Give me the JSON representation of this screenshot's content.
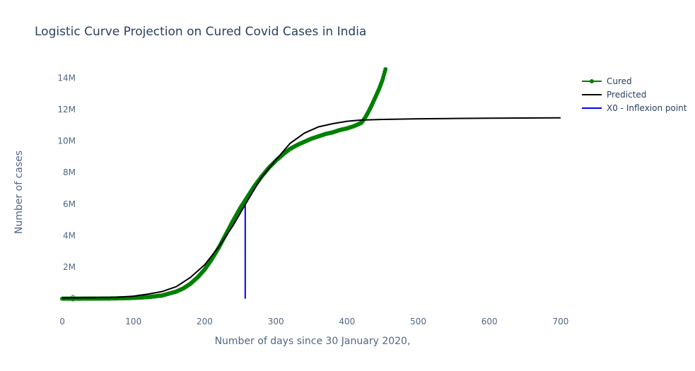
{
  "chart_data": {
    "type": "line",
    "title": "Logistic Curve Projection on Cured Covid Cases in India",
    "xlabel": "Number of days since 30 January 2020,",
    "ylabel": "Number of cases",
    "xlim": [
      -8,
      710
    ],
    "ylim": [
      -1000000,
      15000000
    ],
    "x_ticks": [
      0,
      100,
      200,
      300,
      400,
      500,
      600,
      700
    ],
    "x_tick_labels": [
      "0",
      "100",
      "200",
      "300",
      "400",
      "500",
      "600",
      "700"
    ],
    "y_ticks": [
      0,
      2000000,
      4000000,
      6000000,
      8000000,
      10000000,
      12000000,
      14000000
    ],
    "y_tick_labels": [
      "0",
      "2M",
      "4M",
      "6M",
      "8M",
      "10M",
      "12M",
      "14M"
    ],
    "grid": false,
    "legend_position": "top-right",
    "series": [
      {
        "name": "Cured",
        "style": "lines+markers",
        "color": "#008000",
        "x": [
          0,
          25,
          50,
          75,
          100,
          120,
          140,
          160,
          170,
          180,
          190,
          200,
          210,
          220,
          230,
          240,
          250,
          260,
          270,
          280,
          290,
          300,
          310,
          320,
          330,
          340,
          350,
          360,
          370,
          380,
          390,
          400,
          410,
          420,
          425,
          430,
          435,
          440,
          445,
          450,
          454
        ],
        "y": [
          0,
          5000,
          10000,
          20000,
          50000,
          100000,
          200000,
          450000,
          650000,
          950000,
          1350000,
          1850000,
          2500000,
          3250000,
          4100000,
          4950000,
          5750000,
          6450000,
          7150000,
          7750000,
          8300000,
          8750000,
          9150000,
          9500000,
          9750000,
          9950000,
          10150000,
          10300000,
          10450000,
          10550000,
          10700000,
          10800000,
          10950000,
          11150000,
          11450000,
          11850000,
          12300000,
          12800000,
          13300000,
          13900000,
          14550000
        ]
      },
      {
        "name": "Predicted",
        "style": "lines",
        "color": "#000000",
        "x": [
          0,
          25,
          50,
          75,
          100,
          120,
          140,
          160,
          180,
          200,
          220,
          240,
          260,
          280,
          300,
          320,
          340,
          360,
          380,
          400,
          420,
          450,
          500,
          550,
          600,
          650,
          700
        ],
        "y": [
          50000,
          60000,
          70000,
          80000,
          160000,
          290000,
          450000,
          760000,
          1350000,
          2150000,
          3300000,
          4650000,
          6200000,
          7700000,
          8800000,
          9850000,
          10500000,
          10900000,
          11100000,
          11250000,
          11330000,
          11370000,
          11410000,
          11430000,
          11450000,
          11460000,
          11470000
        ]
      },
      {
        "name": "X0 - Inflexion point",
        "style": "lines",
        "color": "#0000ff",
        "x": [
          257,
          257
        ],
        "y": [
          0,
          5950000
        ]
      }
    ]
  }
}
